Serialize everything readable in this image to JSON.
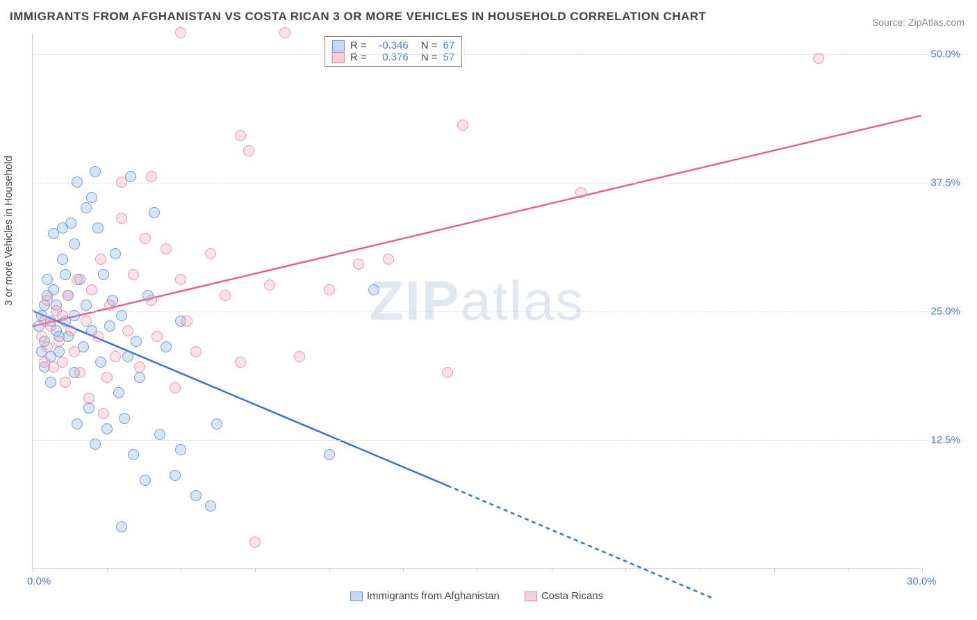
{
  "title": "IMMIGRANTS FROM AFGHANISTAN VS COSTA RICAN 3 OR MORE VEHICLES IN HOUSEHOLD CORRELATION CHART",
  "source_label": "Source: ",
  "source_link": "ZipAtlas.com",
  "ylabel": "3 or more Vehicles in Household",
  "watermark": {
    "bold": "ZIP",
    "light": "atlas"
  },
  "chart": {
    "type": "scatter",
    "xlim": [
      0,
      30
    ],
    "ylim": [
      0,
      52
    ],
    "yticks": [
      12.5,
      25.0,
      37.5,
      50.0
    ],
    "ytick_labels": [
      "12.5%",
      "25.0%",
      "37.5%",
      "50.0%"
    ],
    "xtick_positions": [
      0,
      2.5,
      5,
      7.5,
      10,
      12.5,
      15,
      17.5,
      20,
      22.5,
      25,
      27.5,
      30
    ],
    "xtick_labels": {
      "0": "0.0%",
      "30": "30.0%"
    },
    "grid_color": "#dddddd",
    "axis_color": "#cccccc",
    "background_color": "#ffffff",
    "marker_radius": 8,
    "series": [
      {
        "key": "afghanistan",
        "label": "Immigrants from Afghanistan",
        "color_fill": "rgba(140,180,230,0.35)",
        "color_stroke": "rgba(90,140,210,0.8)",
        "line_color": "#3a6fd8",
        "r": "-0.346",
        "n": "67",
        "trend": {
          "x1": 0,
          "y1": 25.0,
          "x2": 14,
          "y2": 8.0,
          "dash_x2": 23,
          "dash_y2": -3
        },
        "points": [
          [
            0.2,
            23.5
          ],
          [
            0.3,
            21.0
          ],
          [
            0.3,
            24.5
          ],
          [
            0.4,
            25.5
          ],
          [
            0.4,
            22.0
          ],
          [
            0.4,
            19.5
          ],
          [
            0.5,
            28.0
          ],
          [
            0.5,
            26.5
          ],
          [
            0.6,
            24.0
          ],
          [
            0.6,
            20.5
          ],
          [
            0.6,
            18.0
          ],
          [
            0.7,
            32.5
          ],
          [
            0.7,
            27.0
          ],
          [
            0.8,
            23.0
          ],
          [
            0.8,
            25.5
          ],
          [
            0.9,
            22.5
          ],
          [
            0.9,
            21.0
          ],
          [
            1.0,
            33.0
          ],
          [
            1.0,
            30.0
          ],
          [
            1.1,
            28.5
          ],
          [
            1.1,
            24.0
          ],
          [
            1.2,
            26.5
          ],
          [
            1.2,
            22.5
          ],
          [
            1.3,
            33.5
          ],
          [
            1.4,
            31.5
          ],
          [
            1.4,
            19.0
          ],
          [
            1.4,
            24.5
          ],
          [
            1.5,
            37.5
          ],
          [
            1.5,
            14.0
          ],
          [
            1.6,
            28.0
          ],
          [
            1.7,
            21.5
          ],
          [
            1.8,
            35.0
          ],
          [
            1.8,
            25.5
          ],
          [
            1.9,
            15.5
          ],
          [
            2.0,
            36.0
          ],
          [
            2.0,
            23.0
          ],
          [
            2.1,
            12.0
          ],
          [
            2.2,
            33.0
          ],
          [
            2.3,
            20.0
          ],
          [
            2.4,
            28.5
          ],
          [
            2.5,
            13.5
          ],
          [
            2.6,
            23.5
          ],
          [
            2.7,
            26.0
          ],
          [
            2.8,
            30.5
          ],
          [
            2.9,
            17.0
          ],
          [
            3.0,
            24.5
          ],
          [
            3.1,
            14.5
          ],
          [
            3.2,
            20.5
          ],
          [
            3.3,
            38.0
          ],
          [
            3.4,
            11.0
          ],
          [
            3.5,
            22.0
          ],
          [
            3.6,
            18.5
          ],
          [
            3.8,
            8.5
          ],
          [
            3.9,
            26.5
          ],
          [
            3.0,
            4.0
          ],
          [
            4.3,
            13.0
          ],
          [
            4.5,
            21.5
          ],
          [
            4.8,
            9.0
          ],
          [
            5.0,
            24.0
          ],
          [
            5.0,
            11.5
          ],
          [
            5.5,
            7.0
          ],
          [
            6.0,
            6.0
          ],
          [
            6.2,
            14.0
          ],
          [
            10.0,
            11.0
          ],
          [
            11.5,
            27.0
          ],
          [
            2.1,
            38.5
          ],
          [
            4.1,
            34.5
          ]
        ]
      },
      {
        "key": "costarican",
        "label": "Costa Ricans",
        "color_fill": "rgba(240,160,180,0.3)",
        "color_stroke": "rgba(230,120,150,0.7)",
        "line_color": "#e85f8a",
        "r": "0.376",
        "n": "57",
        "trend": {
          "x1": 0,
          "y1": 23.5,
          "x2": 30,
          "y2": 44.0
        },
        "points": [
          [
            0.3,
            22.5
          ],
          [
            0.4,
            20.0
          ],
          [
            0.4,
            24.0
          ],
          [
            0.5,
            21.5
          ],
          [
            0.5,
            26.0
          ],
          [
            0.6,
            23.5
          ],
          [
            0.7,
            19.5
          ],
          [
            0.8,
            25.0
          ],
          [
            0.9,
            22.0
          ],
          [
            1.0,
            20.0
          ],
          [
            1.0,
            24.5
          ],
          [
            1.1,
            18.0
          ],
          [
            1.2,
            26.5
          ],
          [
            1.3,
            23.0
          ],
          [
            1.4,
            21.0
          ],
          [
            1.5,
            28.0
          ],
          [
            1.6,
            19.0
          ],
          [
            1.8,
            24.0
          ],
          [
            1.9,
            16.5
          ],
          [
            2.0,
            27.0
          ],
          [
            2.2,
            22.5
          ],
          [
            2.3,
            30.0
          ],
          [
            2.5,
            18.5
          ],
          [
            2.6,
            25.5
          ],
          [
            2.8,
            20.5
          ],
          [
            3.0,
            34.0
          ],
          [
            3.0,
            37.5
          ],
          [
            3.2,
            23.0
          ],
          [
            3.4,
            28.5
          ],
          [
            3.6,
            19.5
          ],
          [
            3.8,
            32.0
          ],
          [
            4.0,
            26.0
          ],
          [
            4.2,
            22.5
          ],
          [
            4.5,
            31.0
          ],
          [
            4.8,
            17.5
          ],
          [
            5.0,
            28.0
          ],
          [
            5.2,
            24.0
          ],
          [
            5.5,
            21.0
          ],
          [
            5.0,
            52.0
          ],
          [
            6.0,
            30.5
          ],
          [
            6.5,
            26.5
          ],
          [
            7.0,
            20.0
          ],
          [
            7.5,
            2.5
          ],
          [
            7.0,
            42.0
          ],
          [
            7.3,
            40.5
          ],
          [
            8.0,
            27.5
          ],
          [
            8.5,
            52.0
          ],
          [
            9.0,
            20.5
          ],
          [
            10.0,
            27.0
          ],
          [
            11.0,
            29.5
          ],
          [
            14.0,
            19.0
          ],
          [
            14.5,
            43.0
          ],
          [
            18.5,
            36.5
          ],
          [
            26.5,
            49.5
          ],
          [
            12.0,
            30.0
          ],
          [
            2.4,
            15.0
          ],
          [
            4.0,
            38.0
          ]
        ]
      }
    ]
  },
  "legend_top": {
    "r_label": "R =",
    "n_label": "N ="
  }
}
